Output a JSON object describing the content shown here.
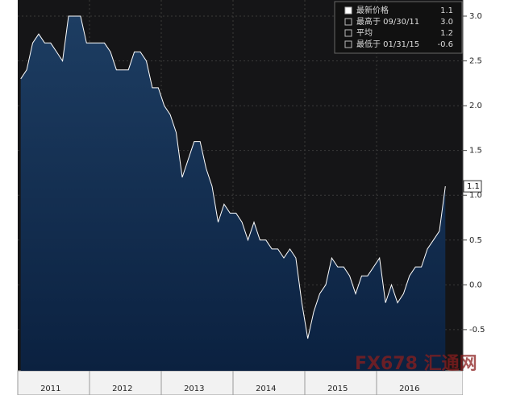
{
  "chart_data": {
    "type": "area",
    "categories": [
      null,
      null,
      null,
      null,
      null,
      "2011",
      null,
      null,
      null,
      null,
      null,
      null,
      null,
      null,
      null,
      null,
      null,
      "2012",
      null,
      null,
      null,
      null,
      null,
      null,
      null,
      null,
      null,
      null,
      null,
      "2013",
      null,
      null,
      null,
      null,
      null,
      null,
      null,
      null,
      null,
      null,
      null,
      "2014",
      null,
      null,
      null,
      null,
      null,
      null,
      null,
      null,
      null,
      null,
      null,
      "2015",
      null,
      null,
      null,
      null,
      null,
      null,
      null,
      null,
      null,
      null,
      null,
      "2016",
      null,
      null,
      null,
      null,
      null,
      null
    ],
    "values": [
      2.3,
      2.4,
      2.7,
      2.8,
      2.7,
      2.7,
      2.6,
      2.5,
      3.0,
      3.0,
      3.0,
      2.7,
      2.7,
      2.7,
      2.7,
      2.6,
      2.4,
      2.4,
      2.4,
      2.6,
      2.6,
      2.5,
      2.2,
      2.2,
      2.0,
      1.9,
      1.7,
      1.2,
      1.4,
      1.6,
      1.6,
      1.3,
      1.1,
      0.7,
      0.9,
      0.8,
      0.8,
      0.7,
      0.5,
      0.7,
      0.5,
      0.5,
      0.4,
      0.4,
      0.3,
      0.4,
      0.3,
      -0.2,
      -0.6,
      -0.3,
      -0.1,
      0.0,
      0.3,
      0.2,
      0.2,
      0.1,
      -0.1,
      0.1,
      0.1,
      0.2,
      0.3,
      -0.2,
      0.0,
      -0.2,
      -0.1,
      0.1,
      0.2,
      0.2,
      0.4,
      0.5,
      0.6,
      1.1
    ],
    "color": "#0e2a4a",
    "line_color": "#ffffff",
    "ylim": [
      -0.96,
      3.18
    ],
    "yticks": [
      {
        "value": -0.5,
        "label": "-0.5"
      },
      {
        "value": 0,
        "label": "0.0"
      },
      {
        "value": 0.5,
        "label": "0.5"
      },
      {
        "value": 1,
        "label": "1.0"
      },
      {
        "value": 1.5,
        "label": "1.5"
      },
      {
        "value": 2,
        "label": "2.0"
      },
      {
        "value": 2.5,
        "label": "2.5"
      },
      {
        "value": 3,
        "label": "3.0"
      }
    ],
    "grid": true,
    "legend_items": [
      {
        "label": "最新价格",
        "value": "1.1"
      },
      {
        "label": "最高于 09/30/11",
        "value": "3.0"
      },
      {
        "label": "平均",
        "value": "1.2"
      },
      {
        "label": "最低于 01/31/15",
        "value": "-0.6"
      }
    ],
    "watermark": "FX678 汇通网"
  }
}
